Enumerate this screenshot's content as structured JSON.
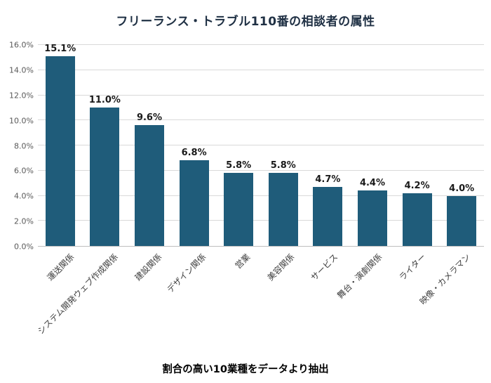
{
  "chart_data": {
    "type": "bar",
    "title": "フリーランス・トラブル110番の相談者の属性",
    "caption": "割合の高い10業種をデータより抽出",
    "categories": [
      "運送関係",
      "システム開発ウェブ作成関係",
      "建設関係",
      "デザイン関係",
      "営業",
      "美容関係",
      "サービス",
      "舞台・演劇関係",
      "ライター",
      "映像・カメラマン"
    ],
    "values": [
      15.1,
      11.0,
      9.6,
      6.8,
      5.8,
      5.8,
      4.7,
      4.4,
      4.2,
      4.0
    ],
    "value_labels": [
      "15.1%",
      "11.0%",
      "9.6%",
      "6.8%",
      "5.8%",
      "5.8%",
      "4.7%",
      "4.4%",
      "4.2%",
      "4.0%"
    ],
    "ylim": [
      0,
      16
    ],
    "yticks": [
      0,
      2,
      4,
      6,
      8,
      10,
      12,
      14,
      16
    ],
    "ytick_labels": [
      "0.0%",
      "2.0%",
      "4.0%",
      "6.0%",
      "8.0%",
      "10.0%",
      "12.0%",
      "14.0%",
      "16.0%"
    ],
    "bar_color": "#1f5c7a",
    "grid": true,
    "legend": "none"
  }
}
